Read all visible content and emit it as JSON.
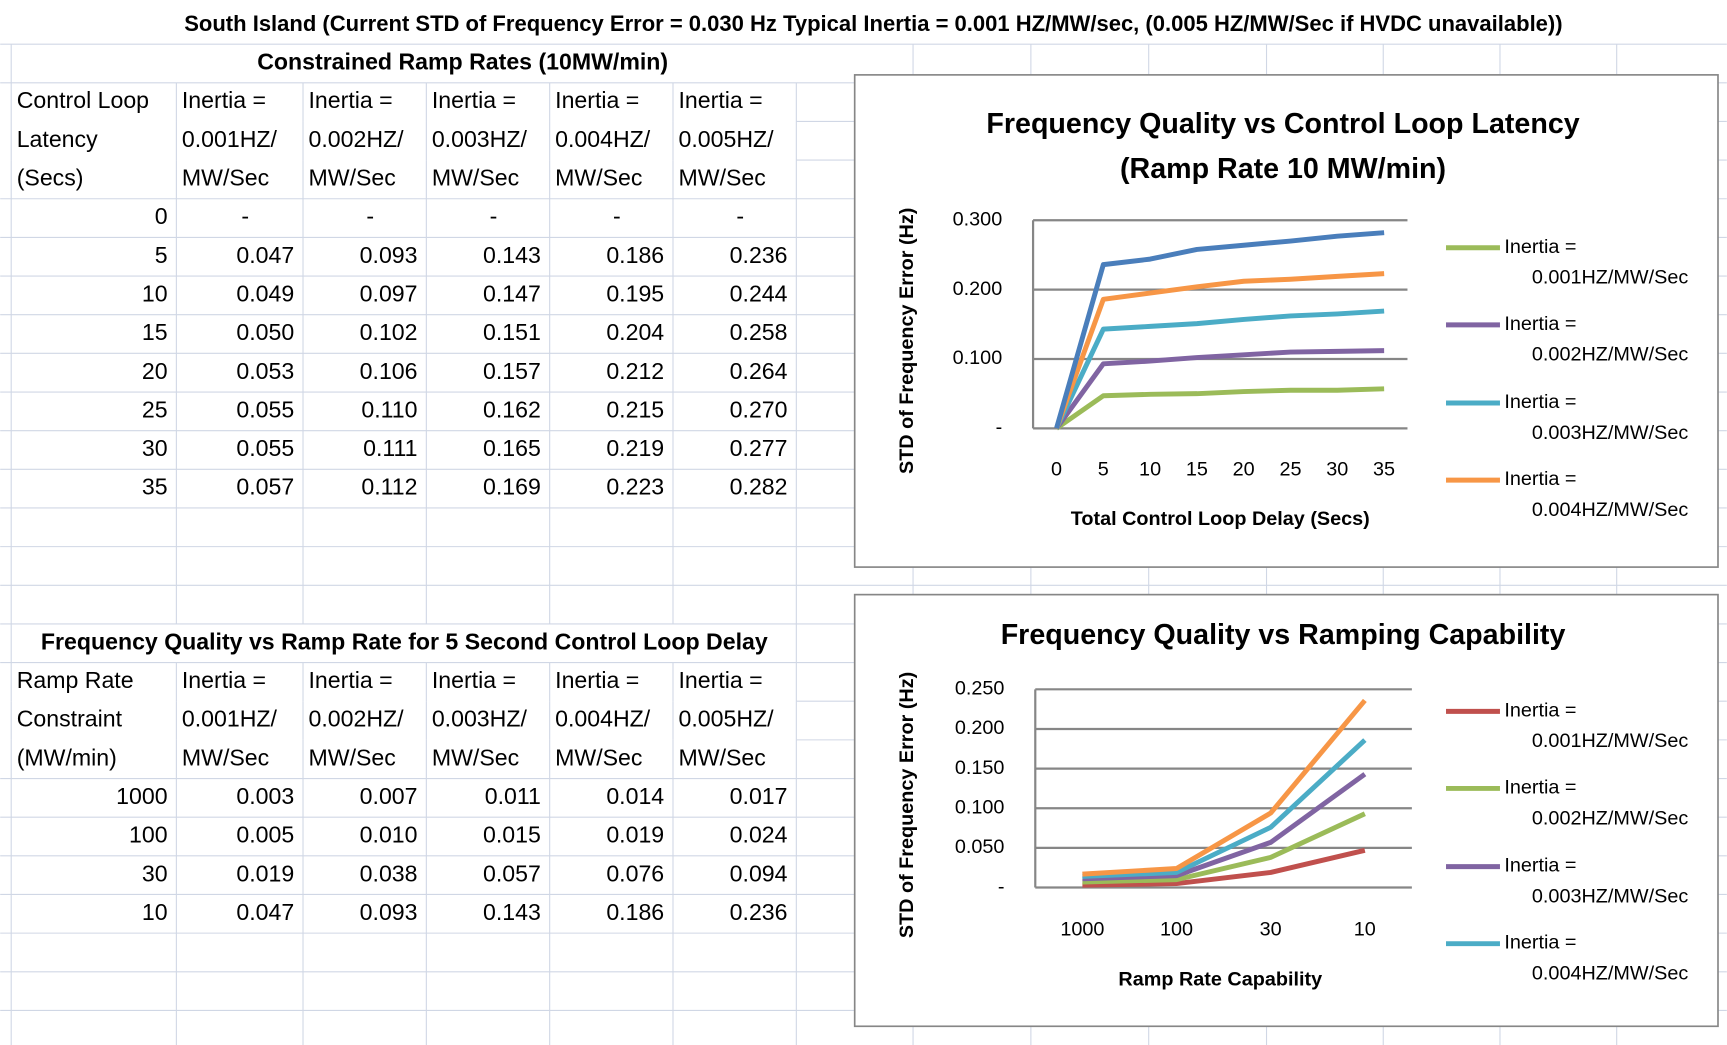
{
  "sheet_title": "South Island (Current STD of Frequency Error = 0.030 Hz Typical Inertia = 0.001 HZ/MW/sec, (0.005 HZ/MW/Sec if HVDC unavailable))",
  "table1": {
    "title": "Constrained Ramp Rates (10MW/min)",
    "header": [
      [
        "Control Loop",
        "Latency",
        "(Secs)"
      ],
      [
        "Inertia =",
        "0.001HZ/",
        "MW/Sec"
      ],
      [
        "Inertia =",
        "0.002HZ/",
        "MW/Sec"
      ],
      [
        "Inertia =",
        "0.003HZ/",
        "MW/Sec"
      ],
      [
        "Inertia =",
        "0.004HZ/",
        "MW/Sec"
      ],
      [
        "Inertia =",
        "0.005HZ/",
        "MW/Sec"
      ]
    ],
    "rows": [
      [
        "0",
        "-",
        "-",
        "-",
        "-",
        "-"
      ],
      [
        "5",
        "0.047",
        "0.093",
        "0.143",
        "0.186",
        "0.236"
      ],
      [
        "10",
        "0.049",
        "0.097",
        "0.147",
        "0.195",
        "0.244"
      ],
      [
        "15",
        "0.050",
        "0.102",
        "0.151",
        "0.204",
        "0.258"
      ],
      [
        "20",
        "0.053",
        "0.106",
        "0.157",
        "0.212",
        "0.264"
      ],
      [
        "25",
        "0.055",
        "0.110",
        "0.162",
        "0.215",
        "0.270"
      ],
      [
        "30",
        "0.055",
        "0.111",
        "0.165",
        "0.219",
        "0.277"
      ],
      [
        "35",
        "0.057",
        "0.112",
        "0.169",
        "0.223",
        "0.282"
      ]
    ]
  },
  "table2": {
    "title": "Frequency Quality vs Ramp Rate for 5 Second Control Loop Delay",
    "header": [
      [
        "Ramp Rate",
        "Constraint",
        "(MW/min)"
      ],
      [
        "Inertia =",
        "0.001HZ/",
        "MW/Sec"
      ],
      [
        "Inertia =",
        "0.002HZ/",
        "MW/Sec"
      ],
      [
        "Inertia =",
        "0.003HZ/",
        "MW/Sec"
      ],
      [
        "Inertia =",
        "0.004HZ/",
        "MW/Sec"
      ],
      [
        "Inertia =",
        "0.005HZ/",
        "MW/Sec"
      ]
    ],
    "rows": [
      [
        "1000",
        "0.003",
        "0.007",
        "0.011",
        "0.014",
        "0.017"
      ],
      [
        "100",
        "0.005",
        "0.010",
        "0.015",
        "0.019",
        "0.024"
      ],
      [
        "30",
        "0.019",
        "0.038",
        "0.057",
        "0.076",
        "0.094"
      ],
      [
        "10",
        "0.047",
        "0.093",
        "0.143",
        "0.186",
        "0.236"
      ]
    ]
  },
  "chart_data": [
    {
      "type": "line",
      "title": [
        "Frequency Quality vs Control Loop Latency",
        "(Ramp Rate 10 MW/min)"
      ],
      "x_label": "Total Control Loop Delay (Secs)",
      "y_label": "STD of Frequency Error (Hz)",
      "categories": [
        "0",
        "5",
        "10",
        "15",
        "20",
        "25",
        "30",
        "35"
      ],
      "ylim": [
        0,
        0.3
      ],
      "yticks": [
        {
          "value": 0,
          "label": "-"
        },
        {
          "value": 0.1,
          "label": "0.100"
        },
        {
          "value": 0.2,
          "label": "0.200"
        },
        {
          "value": 0.3,
          "label": "0.300"
        }
      ],
      "grid": true,
      "legend": "right",
      "series": [
        {
          "name": "Inertia = 0.001HZ/MW/Sec",
          "color": "#9bbb59",
          "values": [
            0,
            0.047,
            0.049,
            0.05,
            0.053,
            0.055,
            0.055,
            0.057
          ]
        },
        {
          "name": "Inertia = 0.002HZ/MW/Sec",
          "color": "#8064a2",
          "values": [
            0,
            0.093,
            0.097,
            0.102,
            0.106,
            0.11,
            0.111,
            0.112
          ]
        },
        {
          "name": "Inertia = 0.003HZ/MW/Sec",
          "color": "#4bacc6",
          "values": [
            0,
            0.143,
            0.147,
            0.151,
            0.157,
            0.162,
            0.165,
            0.169
          ]
        },
        {
          "name": "Inertia = 0.004HZ/MW/Sec",
          "color": "#f79646",
          "values": [
            0,
            0.186,
            0.195,
            0.204,
            0.212,
            0.215,
            0.219,
            0.223
          ]
        },
        {
          "color": "#4a7ebb",
          "values": [
            0,
            0.236,
            0.244,
            0.258,
            0.264,
            0.27,
            0.277,
            0.282
          ]
        }
      ]
    },
    {
      "type": "line",
      "title": [
        "Frequency Quality vs Ramping Capability"
      ],
      "x_label": "Ramp Rate Capability",
      "y_label": "STD of Frequency Error (Hz)",
      "categories": [
        "1000",
        "100",
        "30",
        "10"
      ],
      "ylim": [
        0,
        0.25
      ],
      "yticks": [
        {
          "value": 0,
          "label": "-"
        },
        {
          "value": 0.05,
          "label": "0.050"
        },
        {
          "value": 0.1,
          "label": "0.100"
        },
        {
          "value": 0.15,
          "label": "0.150"
        },
        {
          "value": 0.2,
          "label": "0.200"
        },
        {
          "value": 0.25,
          "label": "0.250"
        }
      ],
      "grid": true,
      "legend": "right",
      "series": [
        {
          "name": "Inertia = 0.001HZ/MW/Sec",
          "color": "#c0504d",
          "values": [
            0.003,
            0.005,
            0.019,
            0.047
          ]
        },
        {
          "name": "Inertia = 0.002HZ/MW/Sec",
          "color": "#9bbb59",
          "values": [
            0.007,
            0.01,
            0.038,
            0.093
          ]
        },
        {
          "name": "Inertia = 0.003HZ/MW/Sec",
          "color": "#8064a2",
          "values": [
            0.011,
            0.015,
            0.057,
            0.143
          ]
        },
        {
          "name": "Inertia = 0.004HZ/MW/Sec",
          "color": "#4bacc6",
          "values": [
            0.014,
            0.019,
            0.076,
            0.186
          ]
        },
        {
          "color": "#f79646",
          "values": [
            0.017,
            0.024,
            0.094,
            0.236
          ]
        }
      ]
    }
  ]
}
